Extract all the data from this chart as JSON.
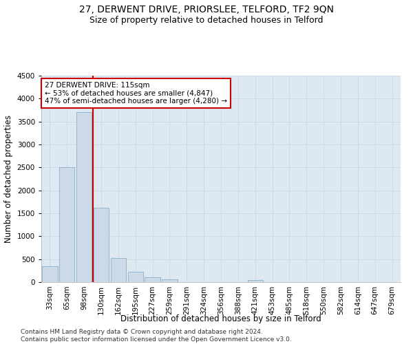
{
  "title": "27, DERWENT DRIVE, PRIORSLEE, TELFORD, TF2 9QN",
  "subtitle": "Size of property relative to detached houses in Telford",
  "xlabel": "Distribution of detached houses by size in Telford",
  "ylabel": "Number of detached properties",
  "categories": [
    "33sqm",
    "65sqm",
    "98sqm",
    "130sqm",
    "162sqm",
    "195sqm",
    "227sqm",
    "259sqm",
    "291sqm",
    "324sqm",
    "356sqm",
    "388sqm",
    "421sqm",
    "453sqm",
    "485sqm",
    "518sqm",
    "550sqm",
    "582sqm",
    "614sqm",
    "647sqm",
    "679sqm"
  ],
  "values": [
    350,
    2500,
    3700,
    1620,
    520,
    220,
    100,
    60,
    0,
    0,
    0,
    0,
    50,
    0,
    0,
    0,
    0,
    0,
    0,
    0,
    0
  ],
  "bar_color": "#ccdae8",
  "bar_edge_color": "#8aaec8",
  "vline_color": "#cc0000",
  "annotation_text": "27 DERWENT DRIVE: 115sqm\n← 53% of detached houses are smaller (4,847)\n47% of semi-detached houses are larger (4,280) →",
  "annotation_box_color": "#ffffff",
  "annotation_box_edge": "#cc0000",
  "ylim": [
    0,
    4500
  ],
  "yticks": [
    0,
    500,
    1000,
    1500,
    2000,
    2500,
    3000,
    3500,
    4000,
    4500
  ],
  "grid_color": "#c8d8e8",
  "bg_color": "#dde8f0",
  "footer": "Contains HM Land Registry data © Crown copyright and database right 2024.\nContains public sector information licensed under the Open Government Licence v3.0.",
  "title_fontsize": 10,
  "subtitle_fontsize": 9,
  "xlabel_fontsize": 8.5,
  "ylabel_fontsize": 8.5,
  "tick_fontsize": 7.5,
  "footer_fontsize": 6.5
}
